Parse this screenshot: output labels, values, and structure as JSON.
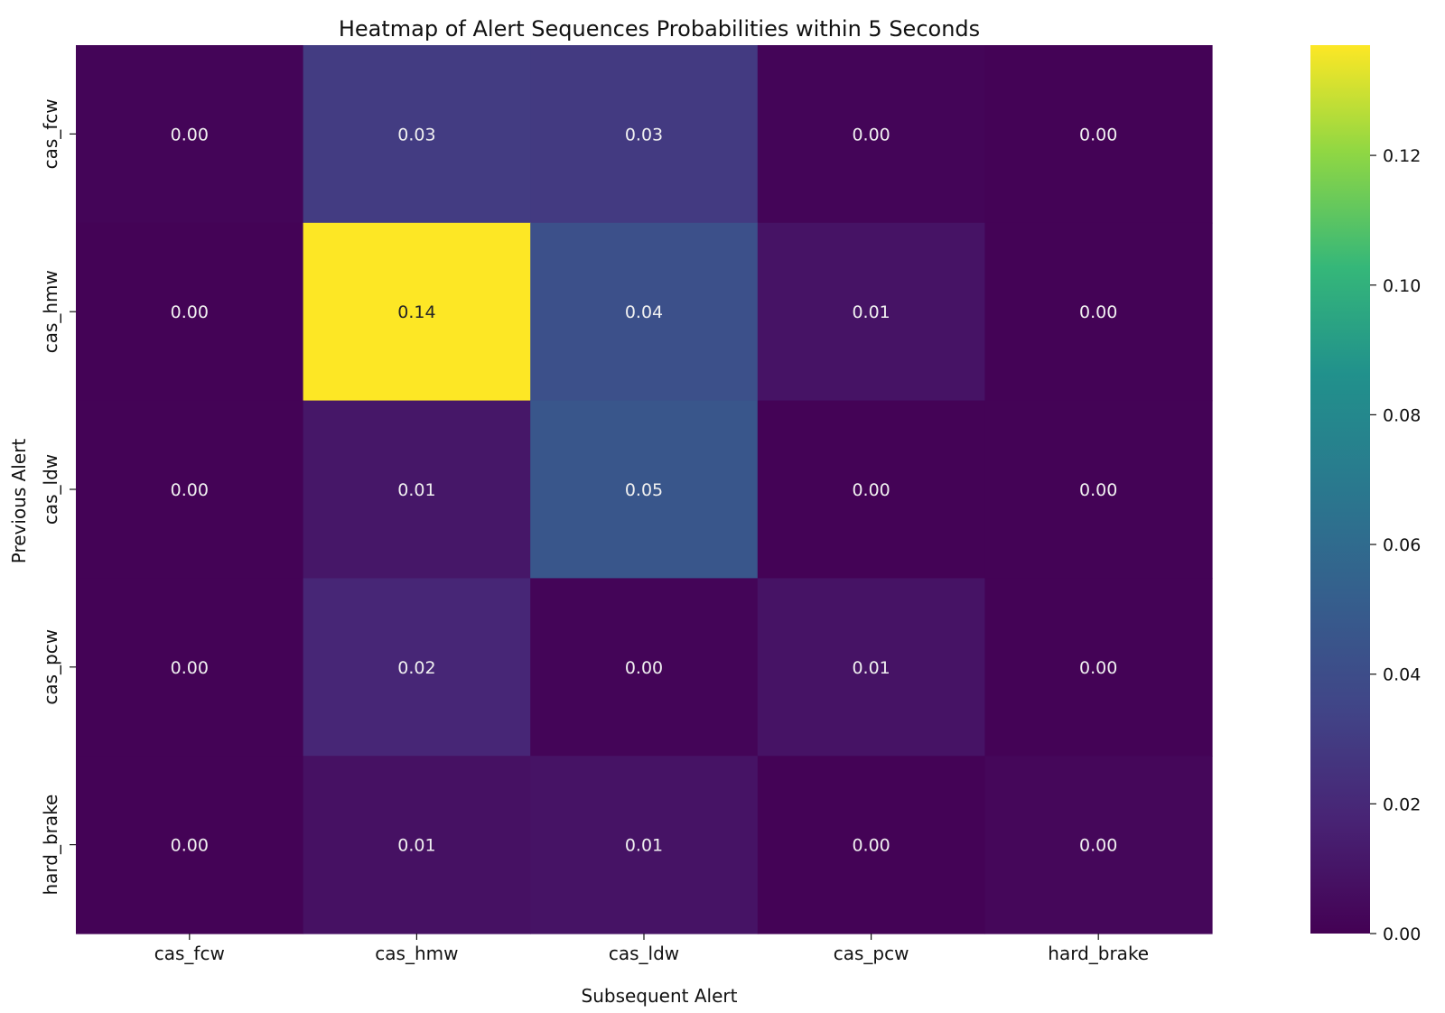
{
  "chart_data": {
    "type": "heatmap",
    "title": "Heatmap of Alert Sequences Probabilities within 5 Seconds",
    "xlabel": "Subsequent Alert",
    "ylabel": "Previous Alert",
    "x_categories": [
      "cas_fcw",
      "cas_hmw",
      "cas_ldw",
      "cas_pcw",
      "hard_brake"
    ],
    "y_categories": [
      "cas_fcw",
      "cas_hmw",
      "cas_ldw",
      "cas_pcw",
      "hard_brake"
    ],
    "values": [
      [
        0.002,
        0.03,
        0.029,
        0.002,
        0.001
      ],
      [
        0.001,
        0.137,
        0.042,
        0.009,
        0.001
      ],
      [
        0.001,
        0.011,
        0.046,
        0.001,
        0.001
      ],
      [
        0.001,
        0.019,
        0.002,
        0.009,
        0.001
      ],
      [
        0.001,
        0.008,
        0.009,
        0.001,
        0.003
      ]
    ],
    "cell_labels": [
      [
        "0.00",
        "0.03",
        "0.03",
        "0.00",
        "0.00"
      ],
      [
        "0.00",
        "0.14",
        "0.04",
        "0.01",
        "0.00"
      ],
      [
        "0.00",
        "0.01",
        "0.05",
        "0.00",
        "0.00"
      ],
      [
        "0.00",
        "0.02",
        "0.00",
        "0.01",
        "0.00"
      ],
      [
        "0.00",
        "0.01",
        "0.01",
        "0.00",
        "0.00"
      ]
    ],
    "colormap": "viridis",
    "colorbar": {
      "range": [
        0,
        0.137
      ],
      "ticks": [
        0.0,
        0.02,
        0.04,
        0.06,
        0.08,
        0.1,
        0.12
      ],
      "tick_labels": [
        "0.00",
        "0.02",
        "0.04",
        "0.06",
        "0.08",
        "0.10",
        "0.12"
      ]
    },
    "grid": false,
    "legend": "colorbar-right"
  }
}
